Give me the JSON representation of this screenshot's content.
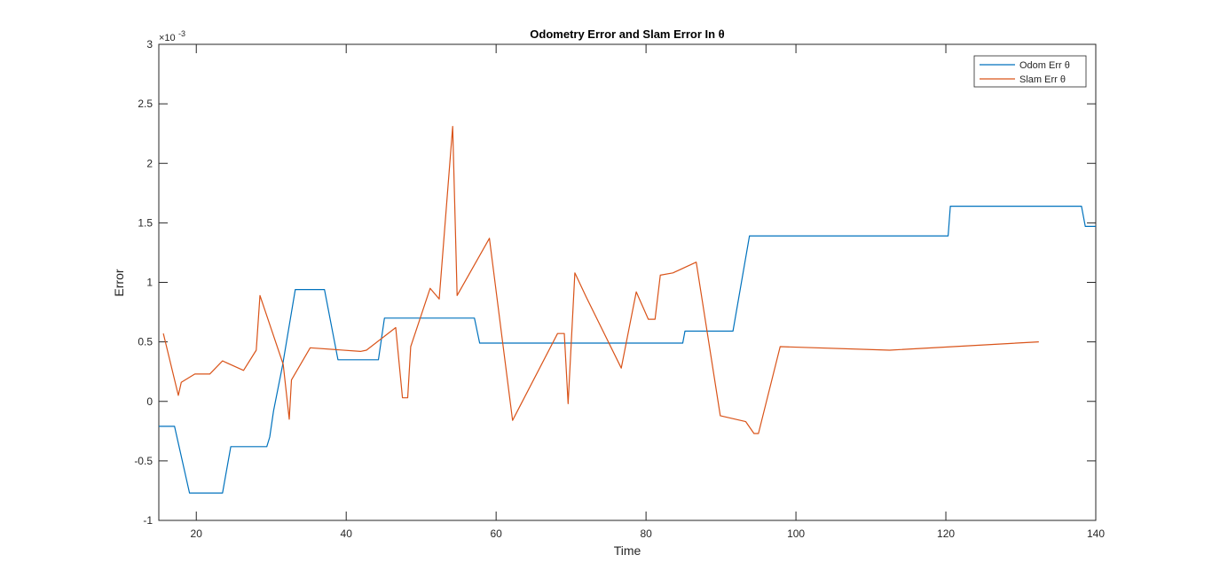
{
  "chart_data": {
    "type": "line",
    "title": "Odometry Error and Slam Error In θ",
    "xlabel": "Time",
    "ylabel": "Error",
    "xlim": [
      15,
      140
    ],
    "ylim": [
      -1,
      3
    ],
    "y_exponent_label": "×10",
    "y_exponent_value": "-3",
    "xticks": [
      20,
      40,
      60,
      80,
      100,
      120,
      140
    ],
    "xtick_labels": [
      "20",
      "40",
      "60",
      "80",
      "100",
      "120",
      "140"
    ],
    "yticks": [
      -1,
      -0.5,
      0,
      0.5,
      1,
      1.5,
      2,
      2.5,
      3
    ],
    "ytick_labels": [
      "-1",
      "-0.5",
      "0",
      "0.5",
      "1",
      "1.5",
      "2",
      "2.5",
      "3"
    ],
    "grid": false,
    "legend_position": "top-right",
    "series": [
      {
        "name": "Odom Err θ",
        "color": "#0072BD",
        "x": [
          15,
          17.1,
          19.1,
          23.5,
          24.6,
          29.4,
          29.8,
          30.3,
          31.5,
          33.2,
          37.1,
          38.9,
          44.3,
          45.1,
          57.1,
          57.8,
          84.9,
          85.2,
          91.6,
          93.8,
          94.0,
          120.3,
          120.6,
          138.1,
          138.6,
          140
        ],
        "y": [
          -0.21,
          -0.21,
          -0.77,
          -0.77,
          -0.38,
          -0.38,
          -0.3,
          -0.08,
          0.3,
          0.94,
          0.94,
          0.35,
          0.35,
          0.7,
          0.7,
          0.49,
          0.49,
          0.59,
          0.59,
          1.39,
          1.39,
          1.39,
          1.64,
          1.64,
          1.47,
          1.47
        ]
      },
      {
        "name": "Slam Err θ",
        "color": "#D95319",
        "x": [
          15.6,
          17.6,
          18.0,
          19.8,
          21.8,
          23.5,
          26.3,
          28.0,
          28.5,
          31.6,
          32.4,
          32.7,
          35.2,
          41.9,
          42.7,
          46.6,
          47.5,
          48.2,
          48.6,
          51.2,
          52.4,
          54.2,
          54.8,
          59.1,
          62.2,
          68.2,
          69.1,
          69.6,
          70.5,
          72.0,
          76.7,
          78.7,
          80.3,
          81.2,
          81.9,
          83.6,
          86.7,
          89.9,
          93.3,
          94.4,
          95.0,
          97.9,
          112.5,
          132.4
        ],
        "y": [
          0.57,
          0.05,
          0.16,
          0.23,
          0.23,
          0.34,
          0.26,
          0.43,
          0.89,
          0.31,
          -0.15,
          0.18,
          0.45,
          0.42,
          0.43,
          0.62,
          0.03,
          0.03,
          0.46,
          0.95,
          0.86,
          2.31,
          0.89,
          1.37,
          -0.16,
          0.57,
          0.57,
          -0.02,
          1.08,
          0.88,
          0.28,
          0.92,
          0.69,
          0.69,
          1.06,
          1.08,
          1.17,
          -0.12,
          -0.17,
          -0.27,
          -0.27,
          0.46,
          0.43,
          0.5
        ]
      }
    ]
  }
}
